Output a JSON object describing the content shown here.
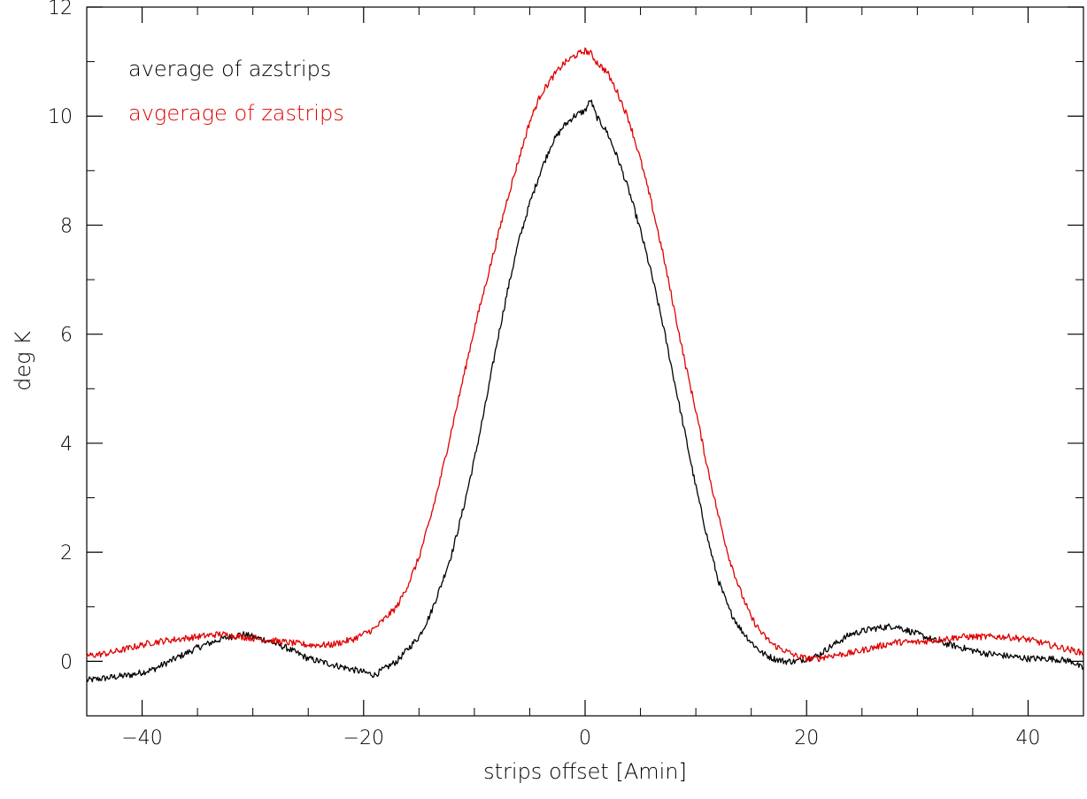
{
  "chart_data": {
    "type": "line",
    "title": "",
    "xlabel": "strips offset [Amin]",
    "ylabel": "deg K",
    "xlim": [
      -45,
      45
    ],
    "ylim": [
      -1,
      12
    ],
    "xticks": [
      -40,
      -20,
      0,
      20,
      40
    ],
    "yticks": [
      0,
      2,
      4,
      6,
      8,
      10,
      12
    ],
    "legend_position": "top-left",
    "grid": false,
    "series": [
      {
        "name": "average of azstrips",
        "color": "#000000",
        "x": [
          -45,
          -43,
          -41,
          -39,
          -37,
          -35,
          -33,
          -31,
          -29,
          -27,
          -25,
          -23,
          -21,
          -19,
          -17,
          -15,
          -14,
          -13,
          -12,
          -11,
          -10,
          -9,
          -8,
          -7,
          -6,
          -5,
          -4,
          -3,
          -2,
          -1,
          0,
          0.5,
          1,
          2,
          3,
          4,
          5,
          6,
          7,
          8,
          9,
          10,
          11,
          12,
          13,
          14,
          15,
          16,
          17,
          18,
          19,
          20,
          21,
          22,
          24,
          26,
          28,
          30,
          32,
          34,
          36,
          38,
          40,
          42,
          44,
          45
        ],
        "y": [
          -0.35,
          -0.3,
          -0.25,
          -0.15,
          0.05,
          0.25,
          0.4,
          0.5,
          0.4,
          0.25,
          0.05,
          -0.05,
          -0.15,
          -0.25,
          0.0,
          0.45,
          0.85,
          1.4,
          2.0,
          2.8,
          3.7,
          4.7,
          5.8,
          6.8,
          7.7,
          8.4,
          9.0,
          9.5,
          9.8,
          10.0,
          10.1,
          10.3,
          10.0,
          9.7,
          9.2,
          8.6,
          7.9,
          7.1,
          6.2,
          5.2,
          4.2,
          3.2,
          2.3,
          1.5,
          0.95,
          0.6,
          0.35,
          0.15,
          0.05,
          0.0,
          0.0,
          0.05,
          0.1,
          0.25,
          0.5,
          0.6,
          0.65,
          0.5,
          0.35,
          0.25,
          0.15,
          0.1,
          0.05,
          0.05,
          0.0,
          -0.15
        ]
      },
      {
        "name": "avgerage of zastrips",
        "color": "#e00000",
        "x": [
          -45,
          -43,
          -41,
          -39,
          -37,
          -35,
          -33,
          -31,
          -29,
          -27,
          -25,
          -23,
          -21,
          -19,
          -17,
          -16,
          -15,
          -14,
          -13,
          -12,
          -11,
          -10,
          -9,
          -8,
          -7,
          -6,
          -5,
          -4,
          -3,
          -2,
          -1,
          0,
          0.5,
          1,
          2,
          3,
          4,
          5,
          6,
          7,
          8,
          9,
          10,
          11,
          12,
          13,
          14,
          15,
          16,
          17,
          18,
          19,
          20,
          21,
          22,
          24,
          26,
          28,
          30,
          32,
          34,
          36,
          38,
          40,
          42,
          44,
          45
        ],
        "y": [
          0.1,
          0.15,
          0.25,
          0.35,
          0.4,
          0.45,
          0.5,
          0.45,
          0.4,
          0.35,
          0.3,
          0.3,
          0.4,
          0.6,
          1.0,
          1.4,
          1.9,
          2.6,
          3.4,
          4.3,
          5.2,
          6.1,
          6.9,
          7.7,
          8.5,
          9.2,
          9.9,
          10.4,
          10.7,
          10.95,
          11.1,
          11.2,
          11.15,
          11.0,
          10.8,
          10.4,
          9.9,
          9.2,
          8.4,
          7.5,
          6.5,
          5.5,
          4.6,
          3.6,
          2.7,
          1.9,
          1.3,
          0.8,
          0.5,
          0.3,
          0.2,
          0.1,
          0.05,
          0.05,
          0.1,
          0.15,
          0.25,
          0.35,
          0.35,
          0.4,
          0.45,
          0.45,
          0.45,
          0.4,
          0.3,
          0.2,
          0.15
        ]
      }
    ]
  }
}
